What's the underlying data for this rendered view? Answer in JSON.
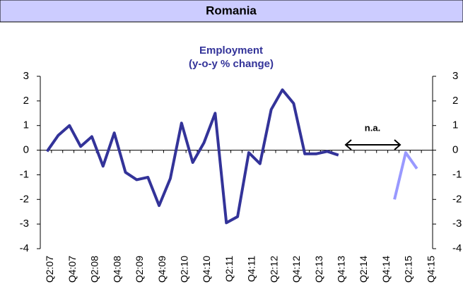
{
  "header": {
    "title": "Romania"
  },
  "chart_data": {
    "type": "line",
    "title": "Employment",
    "subtitle": "(y-o-y % change)",
    "annotation": "n.a.",
    "categories": [
      "Q2:07",
      null,
      "Q4:07",
      null,
      "Q2:08",
      null,
      "Q4:08",
      null,
      "Q2:09",
      null,
      "Q4:09",
      null,
      "Q2:10",
      null,
      "Q4:10",
      null,
      "Q2:11",
      null,
      "Q4:11",
      null,
      "Q2:12",
      null,
      "Q4:12",
      null,
      "Q2:13",
      null,
      "Q4:13",
      null,
      "Q2:14",
      null,
      "Q4:14",
      null,
      "Q2:15",
      null,
      "Q4:15"
    ],
    "series": [
      {
        "color": "#333399",
        "values": [
          -0.05,
          0.6,
          1.0,
          0.15,
          0.55,
          -0.65,
          0.7,
          -0.9,
          -1.2,
          -1.1,
          -2.25,
          -1.15,
          1.1,
          -0.5,
          0.3,
          1.5,
          -2.95,
          -2.7,
          -0.1,
          -0.55,
          1.65,
          2.45,
          1.9,
          -0.15,
          -0.15,
          -0.05,
          -0.2,
          null,
          null,
          null,
          null,
          null,
          null,
          null,
          null
        ]
      },
      {
        "color": "#9999ff",
        "values": [
          null,
          null,
          null,
          null,
          null,
          null,
          null,
          null,
          null,
          null,
          null,
          null,
          null,
          null,
          null,
          null,
          null,
          null,
          null,
          null,
          null,
          null,
          null,
          null,
          null,
          null,
          null,
          null,
          null,
          null,
          null,
          -2.0,
          -0.1,
          -0.75,
          null
        ]
      }
    ],
    "ylim": [
      -4,
      3
    ],
    "yticks": [
      -4,
      -3,
      -2,
      -1,
      0,
      1,
      2,
      3
    ]
  }
}
